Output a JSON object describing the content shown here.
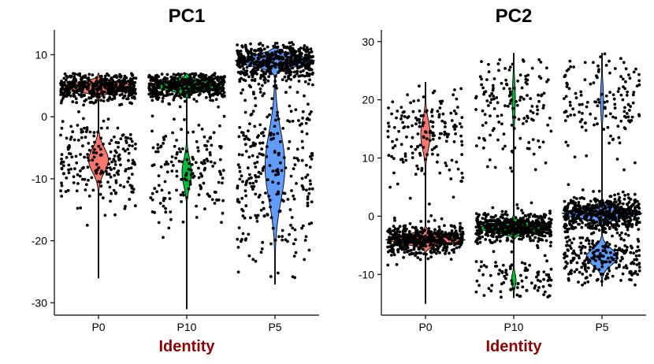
{
  "chart_data": [
    {
      "type": "violin",
      "title": "PC1",
      "xlabel": "Identity",
      "ylabel": "",
      "categories": [
        "P0",
        "P10",
        "P5"
      ],
      "colors": [
        "#F8766D",
        "#00BA38",
        "#619CFF"
      ],
      "ylim": [
        -32,
        14
      ],
      "yticks": [
        -30,
        -20,
        -10,
        0,
        10
      ],
      "series": [
        {
          "category": "P0",
          "min": -26,
          "max": 7,
          "modes": [
            {
              "center": 4.8,
              "width": 0.95,
              "spread": 1.2
            },
            {
              "center": -7.0,
              "width": 0.25,
              "spread": 3.5
            }
          ]
        },
        {
          "category": "P10",
          "min": -31,
          "max": 7,
          "modes": [
            {
              "center": 5.0,
              "width": 0.95,
              "spread": 1.2
            },
            {
              "center": -9.0,
              "width": 0.12,
              "spread": 4.0
            }
          ]
        },
        {
          "category": "P5",
          "min": -27,
          "max": 12,
          "modes": [
            {
              "center": 9.0,
              "width": 1.0,
              "spread": 1.5
            },
            {
              "center": -8.0,
              "width": 0.25,
              "spread": 10.0
            }
          ]
        }
      ]
    },
    {
      "type": "violin",
      "title": "PC2",
      "xlabel": "Identity",
      "ylabel": "",
      "categories": [
        "P0",
        "P10",
        "P5"
      ],
      "colors": [
        "#F8766D",
        "#00BA38",
        "#619CFF"
      ],
      "ylim": [
        -17,
        32
      ],
      "yticks": [
        -10,
        0,
        10,
        20,
        30
      ],
      "series": [
        {
          "category": "P0",
          "min": -15,
          "max": 23,
          "modes": [
            {
              "center": -4.0,
              "width": 1.0,
              "spread": 1.3
            },
            {
              "center": 14.0,
              "width": 0.12,
              "spread": 4.5
            }
          ]
        },
        {
          "category": "P10",
          "min": -14,
          "max": 28,
          "modes": [
            {
              "center": -2.0,
              "width": 0.95,
              "spread": 1.2
            },
            {
              "center": 20.0,
              "width": 0.04,
              "spread": 6.0
            },
            {
              "center": -11.0,
              "width": 0.06,
              "spread": 2.0
            }
          ]
        },
        {
          "category": "P5",
          "min": -12,
          "max": 28,
          "modes": [
            {
              "center": 0.5,
              "width": 1.0,
              "spread": 1.4
            },
            {
              "center": -7.0,
              "width": 0.4,
              "spread": 2.5
            },
            {
              "center": 20.0,
              "width": 0.04,
              "spread": 5.0
            }
          ]
        }
      ]
    }
  ]
}
